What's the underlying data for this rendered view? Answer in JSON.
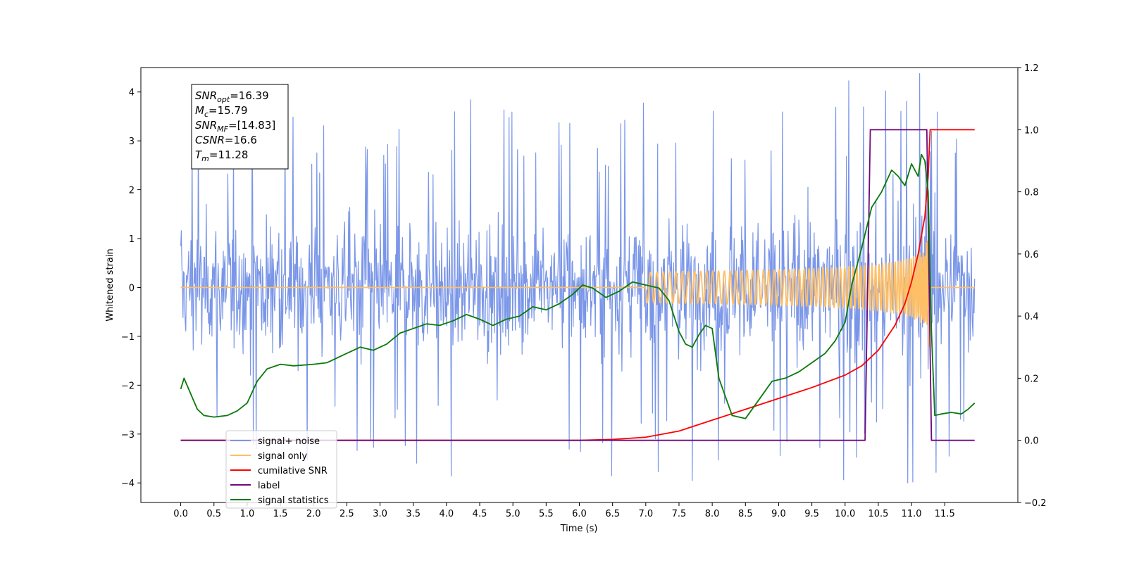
{
  "chart_data": {
    "type": "line",
    "xlabel": "Time (s)",
    "ylabel_left": "Whitened strain",
    "ylabel_right": "",
    "xlim": [
      -0.6,
      12.6
    ],
    "ylim_left": [
      -4.4,
      4.5
    ],
    "ylim_right": [
      -0.2,
      1.2
    ],
    "x_ticks": [
      0.0,
      0.5,
      1.0,
      1.5,
      2.0,
      2.5,
      3.0,
      3.5,
      4.0,
      4.5,
      5.0,
      5.5,
      6.0,
      6.5,
      7.0,
      7.5,
      8.0,
      8.5,
      9.0,
      9.5,
      10.0,
      10.5,
      11.0,
      11.5
    ],
    "x_tick_labels": [
      "0.0",
      "0.5",
      "1.0",
      "1.5",
      "2.0",
      "2.5",
      "3.0",
      "3.5",
      "4.0",
      "4.5",
      "5.0",
      "5.5",
      "6.0",
      "6.5",
      "7.0",
      "7.5",
      "8.0",
      "8.5",
      "9.0",
      "9.5",
      "10.0",
      "10.5",
      "11.0",
      "11.5"
    ],
    "y_left_ticks": [
      -4,
      -3,
      -2,
      -1,
      0,
      1,
      2,
      3,
      4
    ],
    "y_left_tick_labels": [
      "−4",
      "−3",
      "−2",
      "−1",
      "0",
      "1",
      "2",
      "3",
      "4"
    ],
    "y_right_ticks": [
      -0.2,
      0.0,
      0.2,
      0.4,
      0.6,
      0.8,
      1.0,
      1.2
    ],
    "y_right_tick_labels": [
      "−0.2",
      "0.0",
      "0.2",
      "0.4",
      "0.6",
      "0.8",
      "1.0",
      "1.2"
    ],
    "grid": false,
    "legend_placement": "lower-left",
    "annotation": {
      "lines": [
        {
          "sym": "SNR",
          "sub": "opt",
          "val": "=16.39"
        },
        {
          "sym": "M",
          "sub": "c",
          "val": "=15.79"
        },
        {
          "sym": "SNR",
          "sub": "MF",
          "val": "=[14.83]"
        },
        {
          "sym": "CSNR",
          "sub": "",
          "val": "=16.6"
        },
        {
          "sym": "T",
          "sub": "m",
          "val": "=11.28"
        }
      ]
    },
    "series": [
      {
        "name": "signal+ noise",
        "axis": "left",
        "color": "#7a96e8",
        "x_range": [
          0.0,
          11.95
        ],
        "samples": 1400,
        "noise_core_amplitude": 1.45,
        "noise_peak_max": 4.15,
        "noise_peak_min": -4.05
      },
      {
        "name": "signal only",
        "axis": "left",
        "color": "#ffbf66",
        "x_range": [
          0.0,
          11.95
        ],
        "chirp_end": 11.28,
        "amplitude_at_end": 2.0
      },
      {
        "name": "cumilative SNR",
        "axis": "right",
        "color": "#ff0000",
        "x": [
          0.0,
          6.0,
          6.5,
          7.0,
          7.5,
          8.0,
          8.5,
          9.0,
          9.5,
          10.0,
          10.25,
          10.5,
          10.75,
          10.9,
          11.0,
          11.1,
          11.2,
          11.25,
          11.28,
          11.3,
          11.95
        ],
        "y": [
          0.0,
          0.0,
          0.003,
          0.01,
          0.03,
          0.065,
          0.1,
          0.135,
          0.17,
          0.21,
          0.24,
          0.29,
          0.37,
          0.44,
          0.51,
          0.6,
          0.72,
          0.85,
          1.0,
          1.0,
          1.0
        ]
      },
      {
        "name": "label",
        "axis": "right",
        "color": "#6f0a7a",
        "x": [
          0.0,
          10.3,
          10.38,
          11.23,
          11.3,
          11.95
        ],
        "y": [
          0.0,
          0.0,
          1.0,
          1.0,
          0.0,
          0.0
        ]
      },
      {
        "name": "signal statistics",
        "axis": "right",
        "color": "#0a7a0a",
        "x": [
          0.0,
          0.05,
          0.15,
          0.25,
          0.35,
          0.5,
          0.7,
          0.85,
          1.0,
          1.15,
          1.3,
          1.5,
          1.7,
          2.0,
          2.2,
          2.5,
          2.7,
          2.9,
          3.1,
          3.3,
          3.5,
          3.7,
          3.9,
          4.1,
          4.3,
          4.5,
          4.7,
          4.9,
          5.1,
          5.3,
          5.5,
          5.7,
          5.9,
          6.05,
          6.2,
          6.4,
          6.6,
          6.8,
          7.0,
          7.2,
          7.35,
          7.5,
          7.6,
          7.7,
          7.8,
          7.9,
          8.0,
          8.1,
          8.3,
          8.5,
          8.7,
          8.9,
          9.1,
          9.3,
          9.5,
          9.7,
          9.85,
          10.0,
          10.1,
          10.25,
          10.4,
          10.55,
          10.7,
          10.8,
          10.9,
          11.0,
          11.1,
          11.15,
          11.2,
          11.25,
          11.3,
          11.35,
          11.45,
          11.6,
          11.75,
          11.85,
          11.95
        ],
        "y": [
          0.165,
          0.2,
          0.15,
          0.1,
          0.08,
          0.075,
          0.08,
          0.095,
          0.12,
          0.19,
          0.23,
          0.245,
          0.24,
          0.245,
          0.25,
          0.28,
          0.3,
          0.29,
          0.31,
          0.345,
          0.36,
          0.375,
          0.37,
          0.385,
          0.405,
          0.39,
          0.37,
          0.39,
          0.4,
          0.43,
          0.42,
          0.44,
          0.47,
          0.5,
          0.49,
          0.46,
          0.48,
          0.51,
          0.5,
          0.49,
          0.45,
          0.35,
          0.31,
          0.3,
          0.34,
          0.37,
          0.36,
          0.2,
          0.08,
          0.07,
          0.13,
          0.19,
          0.2,
          0.22,
          0.25,
          0.28,
          0.32,
          0.38,
          0.5,
          0.62,
          0.75,
          0.8,
          0.87,
          0.85,
          0.82,
          0.89,
          0.85,
          0.92,
          0.9,
          0.8,
          0.35,
          0.08,
          0.085,
          0.09,
          0.085,
          0.1,
          0.12
        ]
      }
    ]
  }
}
